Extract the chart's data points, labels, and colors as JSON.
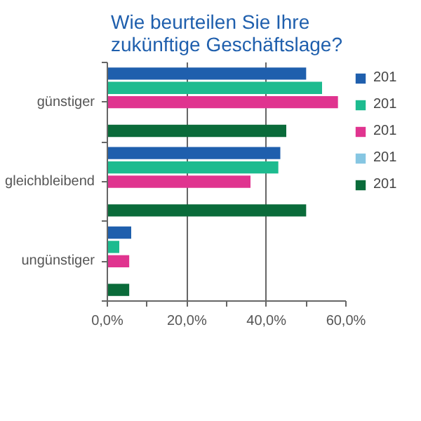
{
  "chart_data": {
    "type": "bar",
    "orientation": "horizontal",
    "title": "Wie beurteilen Sie Ihre\nzukünftige Geschäftslage?",
    "categories": [
      "günstiger",
      "gleichbleibend",
      "ungünstiger"
    ],
    "series": [
      {
        "name": "201",
        "color": "#1f5fad",
        "values": [
          50,
          43.5,
          6
        ]
      },
      {
        "name": "201",
        "color": "#1dbb8f",
        "values": [
          54,
          43,
          3
        ]
      },
      {
        "name": "201",
        "color": "#e0348f",
        "values": [
          58,
          36,
          5.5
        ]
      },
      {
        "name": "201",
        "color": "#86c6e2",
        "values": [
          null,
          null,
          null
        ]
      },
      {
        "name": "201",
        "color": "#0a6b3a",
        "values": [
          45,
          50,
          5.5
        ]
      }
    ],
    "xlim": [
      0,
      60
    ],
    "xticks": [
      {
        "value": 0,
        "label": "0,0%"
      },
      {
        "value": 10,
        "label": null
      },
      {
        "value": 20,
        "label": "20,0%"
      },
      {
        "value": 30,
        "label": null
      },
      {
        "value": 40,
        "label": "40,0%"
      },
      {
        "value": 50,
        "label": null
      },
      {
        "value": 60,
        "label": "60,0%"
      }
    ],
    "grid": "x",
    "legend": "right"
  }
}
